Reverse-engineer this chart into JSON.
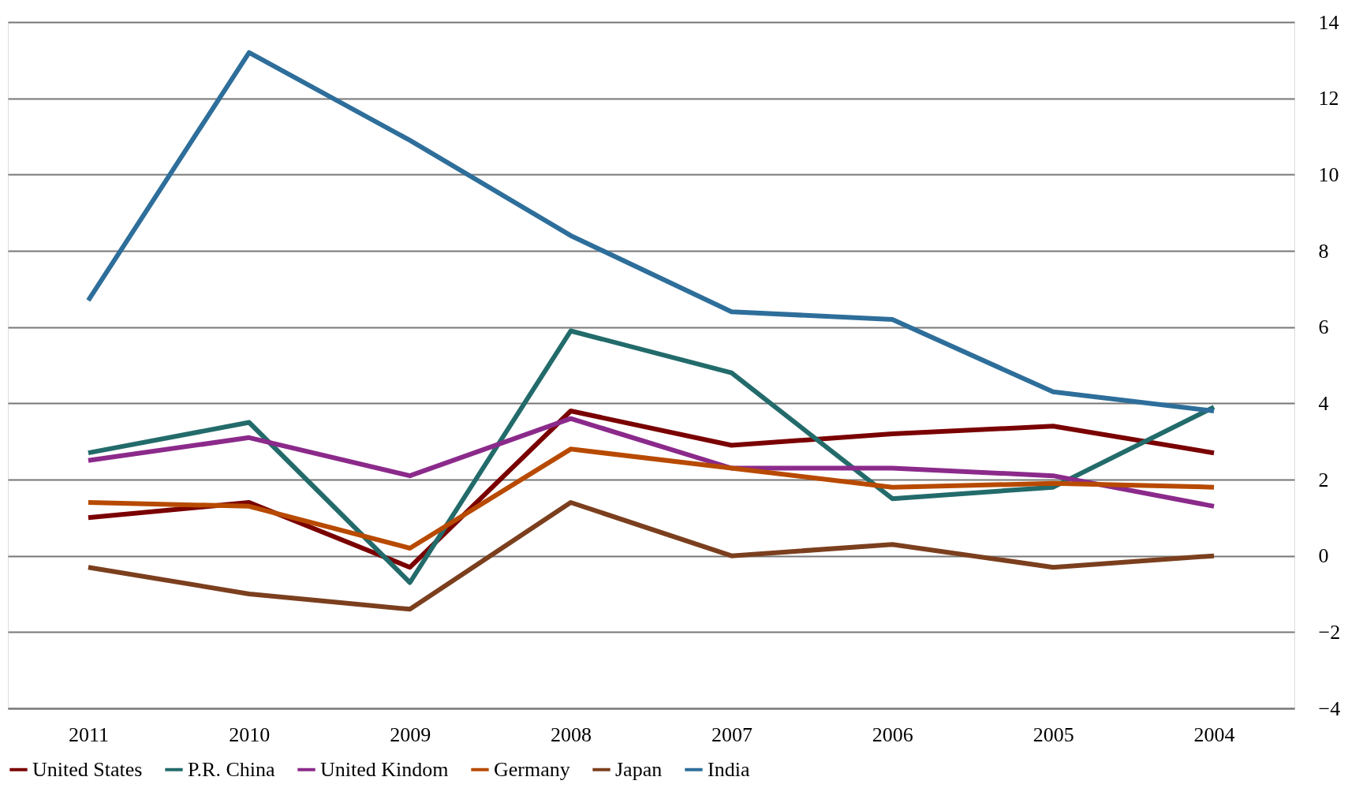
{
  "chart_data": {
    "type": "line",
    "categories": [
      "2011",
      "2010",
      "2009",
      "2008",
      "2007",
      "2006",
      "2005",
      "2004"
    ],
    "series": [
      {
        "name": "United States",
        "color": "#7a0000",
        "values": [
          1.0,
          1.4,
          -0.3,
          3.8,
          2.9,
          3.2,
          3.4,
          2.7
        ]
      },
      {
        "name": "P.R. China",
        "color": "#236b6b",
        "values": [
          2.7,
          3.5,
          -0.7,
          5.9,
          4.8,
          1.5,
          1.8,
          3.9
        ]
      },
      {
        "name": "United Kindom",
        "color": "#8b2a8b",
        "values": [
          2.5,
          3.1,
          2.1,
          3.6,
          2.3,
          2.3,
          2.1,
          1.3
        ]
      },
      {
        "name": "Germany",
        "color": "#b84a00",
        "values": [
          1.4,
          1.3,
          0.2,
          2.8,
          2.3,
          1.8,
          1.9,
          1.8
        ]
      },
      {
        "name": "Japan",
        "color": "#7b3f1e",
        "values": [
          -0.3,
          -1.0,
          -1.4,
          1.4,
          0.0,
          0.3,
          -0.3,
          0.0
        ]
      },
      {
        "name": "India",
        "color": "#2e6e9a",
        "values": [
          6.7,
          13.2,
          10.9,
          8.4,
          6.4,
          6.2,
          4.3,
          3.8
        ]
      }
    ],
    "ylim": [
      -4,
      14
    ],
    "yticks": [
      -4,
      -2,
      0,
      2,
      4,
      6,
      8,
      10,
      12,
      14
    ],
    "grid": "y",
    "legend": "bottom",
    "marker": "none",
    "line_style": "solid"
  }
}
